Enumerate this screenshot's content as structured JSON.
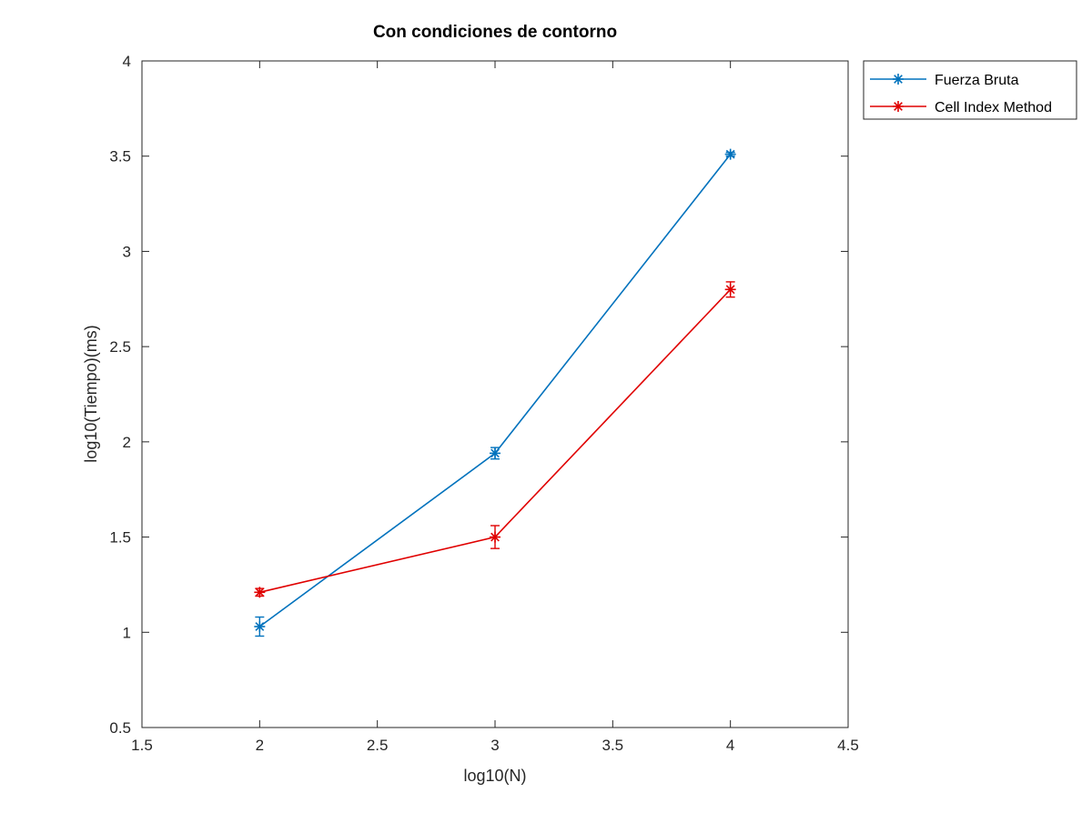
{
  "chart_data": {
    "type": "line",
    "title": "Con condiciones de contorno",
    "xlabel": "log10(N)",
    "ylabel": "log10(Tiempo)(ms)",
    "xlim": [
      1.5,
      4.5
    ],
    "ylim": [
      0.5,
      4
    ],
    "xticks": [
      "1.5",
      "2",
      "2.5",
      "3",
      "3.5",
      "4",
      "4.5"
    ],
    "yticks": [
      "0.5",
      "1",
      "1.5",
      "2",
      "2.5",
      "3",
      "3.5",
      "4"
    ],
    "grid": false,
    "legend_position": "outside-top-right",
    "series": [
      {
        "name": "Fuerza Bruta",
        "color": "#0072BD",
        "marker": "asterisk",
        "x": [
          2,
          3,
          4
        ],
        "y": [
          1.03,
          1.94,
          3.51
        ],
        "error": [
          0.05,
          0.03,
          0.01
        ]
      },
      {
        "name": "Cell Index Method",
        "color": "#E00000",
        "marker": "asterisk",
        "x": [
          2,
          3,
          4
        ],
        "y": [
          1.21,
          1.5,
          2.8
        ],
        "error": [
          0.02,
          0.06,
          0.04
        ]
      }
    ]
  }
}
